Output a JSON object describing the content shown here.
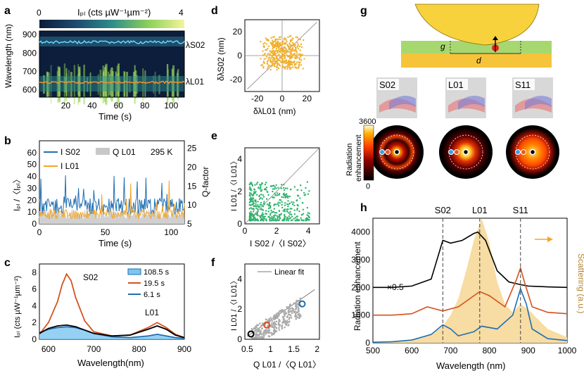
{
  "panels": {
    "a": {
      "letter": "a",
      "colorbar_label": "Iₚₗ (cts µW⁻¹µm⁻²)",
      "colorbar_min": "0",
      "colorbar_max": "4",
      "ylabel": "Wavelength (nm)",
      "xlabel": "Time (s)",
      "xticks": [
        "20",
        "40",
        "60",
        "80",
        "100"
      ],
      "yticks": [
        "600",
        "700",
        "800",
        "900"
      ],
      "label_s02": "λS02",
      "label_l01": "λL01"
    },
    "b": {
      "letter": "b",
      "ylabel": "Iₚₗ /〈Iₚₗ〉",
      "y2label": "Q-factor",
      "xlabel": "Time (s)",
      "temp": "295 K",
      "legend": [
        "I S02",
        "I L01",
        "Q L01"
      ],
      "xticks": [
        "0",
        "50",
        "100"
      ],
      "yticks": [
        "0",
        "10",
        "20",
        "30",
        "40",
        "50",
        "60"
      ],
      "y2ticks": [
        "5",
        "10",
        "15",
        "20",
        "25"
      ]
    },
    "c": {
      "letter": "c",
      "ylabel": "Iₚₗ (cts µW⁻¹µm⁻²)",
      "xlabel": "Wavelength(nm)",
      "peak1": "S02",
      "peak2": "L01",
      "legend": [
        "108.5 s",
        "19.5 s",
        "6.1 s"
      ],
      "xticks": [
        "600",
        "700",
        "800",
        "900"
      ],
      "yticks": [
        "0",
        "2",
        "4",
        "6",
        "8"
      ]
    },
    "d": {
      "letter": "d",
      "ylabel": "δλS02 (nm)",
      "xlabel": "δλL01 (nm)",
      "xticks": [
        "-20",
        "0",
        "20"
      ],
      "yticks": [
        "-20",
        "0",
        "20"
      ]
    },
    "e": {
      "letter": "e",
      "ylabel": "I L01 /〈I L01〉",
      "xlabel": "I S02 /〈I S02〉",
      "xticks": [
        "0",
        "2",
        "4"
      ],
      "yticks": [
        "0",
        "2",
        "4"
      ]
    },
    "f": {
      "letter": "f",
      "ylabel": "I L01 /〈I L01〉",
      "xlabel": "Q L01 /〈Q L01〉",
      "legend": "Linear fit",
      "xticks": [
        "0.5",
        "1",
        "1.5",
        "2"
      ],
      "yticks": [
        "0",
        "2",
        "4"
      ]
    },
    "g": {
      "letter": "g",
      "label_g": "g",
      "label_d": "d",
      "modes": [
        "S02",
        "L01",
        "S11"
      ],
      "cbar_label_1": "Radiation",
      "cbar_label_2": "enhancement",
      "cbar_max": "3600",
      "cbar_min": "0"
    },
    "h": {
      "letter": "h",
      "ylabel": "Radiation enhancement",
      "y2label": "Scattering (a.u.)",
      "xlabel": "Wavelength (nm)",
      "mode_labels": [
        "S02",
        "L01",
        "S11"
      ],
      "scale_note": "×0.5",
      "xticks": [
        "500",
        "600",
        "700",
        "800",
        "900",
        "1000"
      ],
      "yticks": [
        "0",
        "1000",
        "2000",
        "3000",
        "4000"
      ]
    }
  },
  "colors": {
    "blue": "#1f6fb2",
    "orange": "#f5a524",
    "dark_orange": "#d4521f",
    "green": "#2bb36b",
    "gray": "#9a9a9a",
    "scatter_fill": "#f7dca3",
    "gold": "#e7c04a",
    "lightgreen": "#a6d86f"
  },
  "chart_data": [
    {
      "panel": "c",
      "type": "line",
      "xlim": [
        580,
        900
      ],
      "ylim": [
        0,
        9
      ],
      "series": [
        {
          "name": "108.5 s",
          "x": [
            580,
            600,
            620,
            640,
            660,
            680,
            700,
            740,
            780,
            820,
            840,
            860,
            880,
            900
          ],
          "y": [
            0.8,
            1.2,
            1.4,
            1.5,
            1.4,
            1.1,
            0.7,
            0.3,
            0.2,
            0.4,
            0.6,
            0.4,
            0.2,
            0.1
          ]
        },
        {
          "name": "19.5 s",
          "x": [
            580,
            600,
            620,
            630,
            640,
            650,
            660,
            680,
            700,
            740,
            780,
            820,
            840,
            860,
            880,
            900
          ],
          "y": [
            0.6,
            2.0,
            4.5,
            6.5,
            7.8,
            7.0,
            5.0,
            2.2,
            0.9,
            0.4,
            0.5,
            1.4,
            2.0,
            1.4,
            0.6,
            0.2
          ]
        },
        {
          "name": "6.1 s",
          "x": [
            580,
            600,
            620,
            640,
            660,
            680,
            700,
            740,
            780,
            820,
            840,
            860,
            880,
            900
          ],
          "y": [
            0.7,
            1.3,
            1.6,
            1.7,
            1.5,
            1.1,
            0.7,
            0.4,
            0.5,
            1.2,
            1.6,
            1.2,
            0.5,
            0.2
          ]
        }
      ]
    },
    {
      "panel": "h",
      "type": "line",
      "xlim": [
        500,
        1000
      ],
      "ylim": [
        0,
        4500
      ],
      "series": [
        {
          "name": "S02 curve",
          "x": [
            500,
            550,
            600,
            650,
            680,
            700,
            730,
            760,
            770,
            790,
            820,
            850,
            880,
            900,
            950,
            1000
          ],
          "y": [
            2000,
            2000,
            2050,
            2300,
            3700,
            3600,
            3700,
            3950,
            4000,
            3700,
            2600,
            2200,
            2100,
            2050,
            2020,
            2000
          ]
        },
        {
          "name": "L01 curve",
          "x": [
            500,
            550,
            600,
            640,
            680,
            720,
            760,
            775,
            800,
            840,
            870,
            880,
            890,
            910,
            950,
            1000
          ],
          "y": [
            1000,
            1000,
            1050,
            1300,
            1150,
            1300,
            1700,
            1850,
            1700,
            1300,
            2300,
            2700,
            2200,
            1300,
            1100,
            1050
          ]
        },
        {
          "name": "S11 curve",
          "x": [
            500,
            550,
            600,
            650,
            680,
            700,
            720,
            760,
            780,
            820,
            860,
            880,
            895,
            910,
            950,
            1000
          ],
          "y": [
            20,
            40,
            100,
            300,
            650,
            500,
            250,
            400,
            600,
            500,
            1000,
            1950,
            1400,
            500,
            150,
            80
          ]
        },
        {
          "name": "scattering",
          "x": [
            500,
            600,
            650,
            680,
            700,
            720,
            740,
            760,
            780,
            800,
            820,
            840,
            860,
            880,
            900,
            950,
            1000
          ],
          "y": [
            0,
            100,
            300,
            600,
            1000,
            1600,
            2600,
            3700,
            4500,
            3600,
            2200,
            1400,
            1100,
            1400,
            1200,
            500,
            200
          ]
        }
      ]
    }
  ]
}
